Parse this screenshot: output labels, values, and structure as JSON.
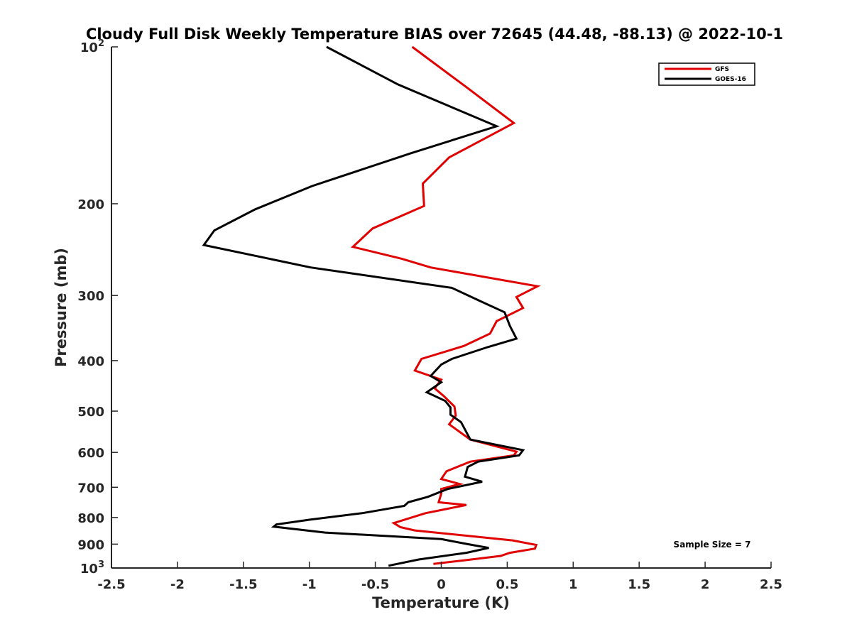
{
  "chart_data": {
    "type": "line",
    "title": "Cloudy Full Disk Weekly Temperature BIAS over 72645 (44.48, -88.13) @ 2022-10-1",
    "xlabel": "Temperature (K)",
    "ylabel": "Pressure (mb)",
    "xlim": [
      -2.5,
      2.5
    ],
    "ylim": [
      100,
      1000
    ],
    "yscale": "log",
    "y_reversed": true,
    "x_ticks": [
      "-2.5",
      "-2",
      "-1.5",
      "-1",
      "-0.5",
      "0",
      "0.5",
      "1",
      "1.5",
      "2",
      "2.5"
    ],
    "x_tick_values": [
      -2.5,
      -2,
      -1.5,
      -1,
      -0.5,
      0,
      0.5,
      1,
      1.5,
      2,
      2.5
    ],
    "y_tick_values": [
      100,
      200,
      300,
      400,
      500,
      600,
      700,
      800,
      900,
      1000
    ],
    "y_ticks": [
      {
        "base": "10",
        "exp": "2"
      },
      {
        "base": "200",
        "exp": ""
      },
      {
        "base": "300",
        "exp": ""
      },
      {
        "base": "400",
        "exp": ""
      },
      {
        "base": "500",
        "exp": ""
      },
      {
        "base": "600",
        "exp": ""
      },
      {
        "base": "700",
        "exp": ""
      },
      {
        "base": "800",
        "exp": ""
      },
      {
        "base": "900",
        "exp": ""
      },
      {
        "base": "10",
        "exp": "3"
      }
    ],
    "grid": false,
    "legend_position": "top-right",
    "annotation": "Sample Size = 7",
    "series": [
      {
        "name": "GFS",
        "color": "#e00000",
        "points": [
          [
            -0.22,
            100
          ],
          [
            0.2,
            120
          ],
          [
            0.55,
            140
          ],
          [
            0.06,
            163
          ],
          [
            -0.14,
            183
          ],
          [
            -0.13,
            202
          ],
          [
            -0.52,
            223
          ],
          [
            -0.67,
            242
          ],
          [
            -0.3,
            255
          ],
          [
            -0.08,
            265
          ],
          [
            0.73,
            288
          ],
          [
            0.57,
            302
          ],
          [
            0.62,
            317
          ],
          [
            0.42,
            336
          ],
          [
            0.37,
            355
          ],
          [
            0.17,
            375
          ],
          [
            -0.15,
            397
          ],
          [
            -0.2,
            418
          ],
          [
            0.0,
            435
          ],
          [
            -0.05,
            452
          ],
          [
            0.02,
            468
          ],
          [
            0.1,
            490
          ],
          [
            0.11,
            510
          ],
          [
            0.06,
            530
          ],
          [
            0.22,
            567
          ],
          [
            0.57,
            598
          ],
          [
            0.55,
            608
          ],
          [
            0.22,
            625
          ],
          [
            0.04,
            652
          ],
          [
            0.0,
            675
          ],
          [
            0.14,
            690
          ],
          [
            -0.0,
            705
          ],
          [
            0.0,
            720
          ],
          [
            -0.02,
            748
          ],
          [
            0.19,
            757
          ],
          [
            -0.12,
            785
          ],
          [
            -0.36,
            820
          ],
          [
            -0.31,
            835
          ],
          [
            -0.2,
            847
          ],
          [
            0.54,
            885
          ],
          [
            0.72,
            903
          ],
          [
            0.71,
            918
          ],
          [
            0.52,
            935
          ],
          [
            0.45,
            948
          ],
          [
            0.2,
            965
          ],
          [
            -0.06,
            982
          ]
        ]
      },
      {
        "name": "GOES-16",
        "color": "#000000",
        "points": [
          [
            -0.87,
            100
          ],
          [
            -0.33,
            118
          ],
          [
            0.42,
            142
          ],
          [
            -0.23,
            160
          ],
          [
            -0.98,
            185
          ],
          [
            -1.41,
            205
          ],
          [
            -1.72,
            225
          ],
          [
            -1.8,
            240
          ],
          [
            -0.99,
            265
          ],
          [
            0.08,
            290
          ],
          [
            0.29,
            307
          ],
          [
            0.48,
            323
          ],
          [
            0.52,
            343
          ],
          [
            0.57,
            363
          ],
          [
            0.35,
            377
          ],
          [
            0.08,
            397
          ],
          [
            0.0,
            407
          ],
          [
            -0.08,
            428
          ],
          [
            0.0,
            440
          ],
          [
            -0.11,
            460
          ],
          [
            0.03,
            478
          ],
          [
            0.07,
            492
          ],
          [
            0.07,
            508
          ],
          [
            0.15,
            525
          ],
          [
            0.22,
            567
          ],
          [
            0.62,
            594
          ],
          [
            0.59,
            608
          ],
          [
            0.28,
            625
          ],
          [
            0.2,
            640
          ],
          [
            0.18,
            668
          ],
          [
            0.31,
            683
          ],
          [
            0.05,
            705
          ],
          [
            -0.1,
            730
          ],
          [
            -0.25,
            748
          ],
          [
            -0.28,
            760
          ],
          [
            -0.6,
            785
          ],
          [
            -1.0,
            808
          ],
          [
            -1.25,
            825
          ],
          [
            -1.27,
            833
          ],
          [
            -0.88,
            855
          ],
          [
            0.0,
            880
          ],
          [
            0.2,
            900
          ],
          [
            0.36,
            915
          ],
          [
            0.19,
            935
          ],
          [
            -0.17,
            963
          ],
          [
            -0.4,
            990
          ]
        ]
      }
    ]
  }
}
